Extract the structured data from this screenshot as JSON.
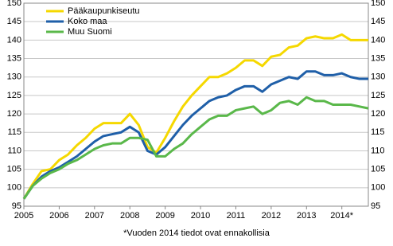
{
  "chart_data": {
    "type": "line",
    "categories": [
      "2005",
      null,
      null,
      null,
      "2006",
      null,
      null,
      null,
      "2007",
      null,
      null,
      null,
      "2008",
      null,
      null,
      null,
      "2009",
      null,
      null,
      null,
      "2010",
      null,
      null,
      null,
      "2011",
      null,
      null,
      null,
      "2012",
      null,
      null,
      null,
      "2013",
      null,
      null,
      null,
      "2014*",
      null,
      null,
      null
    ],
    "series": [
      {
        "name": "Pääkaupunkiseutu",
        "color": "#f5d800",
        "values": [
          97,
          101,
          104.5,
          105,
          107.5,
          109,
          111.5,
          113.5,
          116,
          117.5,
          117.5,
          117.5,
          120,
          117,
          111,
          109.5,
          113.5,
          118,
          122,
          125,
          127.5,
          130,
          130,
          131,
          132.5,
          134.5,
          134.5,
          133,
          135.5,
          136,
          138,
          138.5,
          140.5,
          141,
          140.5,
          140.5,
          141.5,
          140,
          140,
          140
        ]
      },
      {
        "name": "Koko maa",
        "color": "#1f5fa8",
        "values": [
          97,
          100.5,
          103,
          104.5,
          105.5,
          107,
          108.5,
          110.5,
          112.5,
          114,
          114.5,
          115,
          116.5,
          115,
          110,
          109,
          111,
          114,
          117,
          119.5,
          121.5,
          123.5,
          124.5,
          125,
          126.5,
          127.5,
          127.5,
          126,
          128,
          129,
          130,
          129.5,
          131.5,
          131.5,
          130.5,
          130.5,
          131,
          130,
          129.5,
          129.5
        ]
      },
      {
        "name": "Muu Suomi",
        "color": "#5ab84a",
        "values": [
          97,
          100.5,
          102.5,
          104,
          105,
          106.5,
          107.5,
          109,
          110.5,
          111.5,
          112,
          112,
          113.5,
          113.5,
          113,
          108.5,
          108.5,
          110.5,
          112,
          114.5,
          116.5,
          118.5,
          119.5,
          119.5,
          121,
          121.5,
          122,
          120,
          121,
          123,
          123.5,
          122.5,
          124.5,
          123.5,
          123.5,
          122.5,
          122.5,
          122.5,
          122,
          121.5
        ]
      }
    ],
    "ylim": [
      95,
      150
    ],
    "yticks": [
      95,
      100,
      105,
      110,
      115,
      120,
      125,
      130,
      135,
      140,
      145,
      150
    ],
    "grid": true,
    "footnote": "*Vuoden 2014 tiedot ovat ennakollisia"
  }
}
